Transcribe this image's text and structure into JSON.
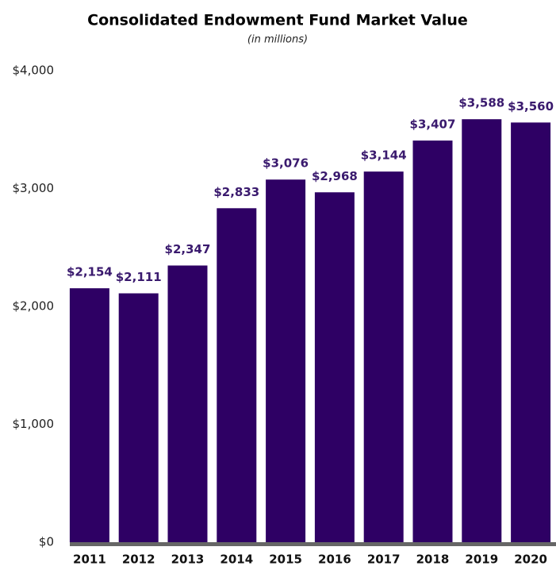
{
  "chart_data": {
    "type": "bar",
    "title": "Consolidated Endowment Fund Market Value",
    "subtitle": "(in millions)",
    "categories": [
      "2011",
      "2012",
      "2013",
      "2014",
      "2015",
      "2016",
      "2017",
      "2018",
      "2019",
      "2020"
    ],
    "values": [
      2154,
      2111,
      2347,
      2833,
      3076,
      2968,
      3144,
      3407,
      3588,
      3560
    ],
    "value_labels": [
      "$2,154",
      "$2,111",
      "$2,347",
      "$2,833",
      "$3,076",
      "$2,968",
      "$3,144",
      "$3,407",
      "$3,588",
      "$3,560"
    ],
    "color": "#2e0064",
    "ylim": [
      0,
      4000
    ],
    "yticks": [
      {
        "value": 0,
        "label": "$0"
      },
      {
        "value": 1000,
        "label": "$1,000"
      },
      {
        "value": 2000,
        "label": "$2,000"
      },
      {
        "value": 3000,
        "label": "$3,000"
      },
      {
        "value": 4000,
        "label": "$4,000"
      }
    ],
    "grid": false
  }
}
